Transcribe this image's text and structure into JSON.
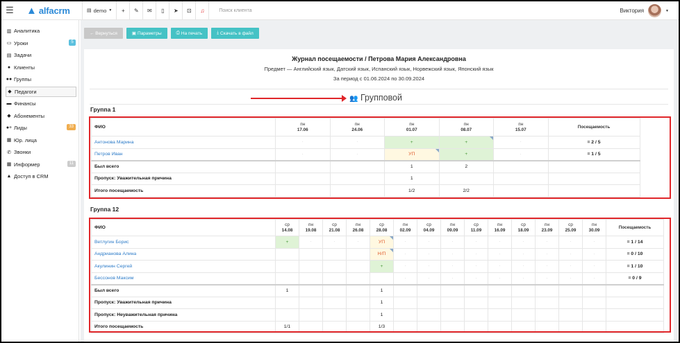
{
  "topbar": {
    "brand": "alfacrm",
    "account": "demo",
    "search_placeholder": "Поиск клиента",
    "user_name": "Виктория",
    "icons": [
      "menu-icon",
      "plus-icon",
      "wrench-icon",
      "mail-icon",
      "phone-icon",
      "telegram-icon",
      "cart-icon",
      "bell-icon"
    ]
  },
  "sidebar": {
    "items": [
      {
        "label": "Аналитика",
        "icon": "chart-icon"
      },
      {
        "label": "Уроки",
        "icon": "calendar-icon",
        "badge": "5",
        "badge_color": "#5bc0de"
      },
      {
        "label": "Задачи",
        "icon": "tasks-icon"
      },
      {
        "label": "Клиенты",
        "icon": "user-icon"
      },
      {
        "label": "Группы",
        "icon": "group-icon"
      },
      {
        "label": "Педагоги",
        "icon": "graduation-cap-icon",
        "active": true
      },
      {
        "label": "Финансы",
        "icon": "money-icon"
      },
      {
        "label": "Абонементы",
        "icon": "tag-icon"
      },
      {
        "label": "Лиды",
        "icon": "user-plus-icon",
        "badge": "33",
        "badge_color": "#f0ad4e"
      },
      {
        "label": "Юр. лица",
        "icon": "building-icon"
      },
      {
        "label": "Звонки",
        "icon": "phone-icon"
      },
      {
        "label": "Информер",
        "icon": "informer-icon",
        "badge": "11",
        "badge_color": "#cccccc"
      },
      {
        "label": "Доступ в CRM",
        "icon": "lock-icon"
      }
    ]
  },
  "toolbar": {
    "back_label": "← Вернуться",
    "params_label": "Параметры",
    "print_label": "На печать",
    "download_label": "Скачать в файл"
  },
  "journal": {
    "title": "Журнал посещаемости / Петрова Мария Александровна",
    "subject": "Предмет — Английский язык, Датский язык, Испанский язык, Норвежский язык, Японский язык",
    "period": "За период с 01.06.2024 по 30.09.2024",
    "group_type": "Групповой"
  },
  "colors": {
    "accent": "#45c2c5",
    "brand": "#2c8ad8",
    "highlight": "#e0262a",
    "present": "#dff3d6",
    "excused": "#fff8e1"
  },
  "groups": [
    {
      "name": "Группа 1",
      "fio_header": "ФИО",
      "attendance_header": "Посещаемость",
      "dates": [
        {
          "day": "пн",
          "date": "17.06"
        },
        {
          "day": "пн",
          "date": "24.06"
        },
        {
          "day": "пн",
          "date": "01.07"
        },
        {
          "day": "пн",
          "date": "08.07"
        },
        {
          "day": "пн",
          "date": "15.07"
        }
      ],
      "students": [
        {
          "name": "Антонова Марина",
          "marks": [
            "·",
            "·",
            "+",
            "+",
            "·"
          ],
          "attendance": "= 2 / 5"
        },
        {
          "name": "Петров Иван",
          "marks": [
            "·",
            "·",
            "УП",
            "+",
            "·"
          ],
          "attendance": "= 1 / 5"
        }
      ],
      "summary": [
        {
          "label": "Был всего",
          "values": [
            "",
            "",
            "1",
            "2",
            ""
          ]
        },
        {
          "label": "Пропуск: Уважительная причина",
          "values": [
            "",
            "",
            "1",
            "",
            ""
          ]
        },
        {
          "label": "Итого посещаемость",
          "values": [
            "",
            "",
            "1/2",
            "2/2",
            ""
          ]
        }
      ]
    },
    {
      "name": "Группа 12",
      "fio_header": "ФИО",
      "attendance_header": "Посещаемость",
      "dates": [
        {
          "day": "ср",
          "date": "14.08"
        },
        {
          "day": "пн",
          "date": "19.08"
        },
        {
          "day": "ср",
          "date": "21.08"
        },
        {
          "day": "пн",
          "date": "26.08"
        },
        {
          "day": "ср",
          "date": "28.08"
        },
        {
          "day": "пн",
          "date": "02.09"
        },
        {
          "day": "ср",
          "date": "04.09"
        },
        {
          "day": "пн",
          "date": "09.09"
        },
        {
          "day": "ср",
          "date": "11.09"
        },
        {
          "day": "пн",
          "date": "16.09"
        },
        {
          "day": "ср",
          "date": "18.09"
        },
        {
          "day": "пн",
          "date": "23.09"
        },
        {
          "day": "ср",
          "date": "25.09"
        },
        {
          "day": "пн",
          "date": "30.09"
        }
      ],
      "students": [
        {
          "name": "Ветлугин Борис",
          "marks": [
            "+",
            "·",
            "·",
            "·",
            "УП",
            "·",
            "·",
            "·",
            "·",
            "·",
            "·",
            "·",
            "·",
            "·"
          ],
          "attendance": "= 1 / 14"
        },
        {
          "name": "Андрианова Алина",
          "marks": [
            "",
            "",
            "",
            "",
            "Н/П",
            "·",
            "·",
            "·",
            "·",
            "·",
            "·",
            "·",
            "·",
            "·"
          ],
          "attendance": "= 0 / 10"
        },
        {
          "name": "Акулинин Сергей",
          "marks": [
            "",
            "",
            "",
            "",
            "+",
            "·",
            "·",
            "·",
            "·",
            "·",
            "·",
            "·",
            "·",
            "·"
          ],
          "attendance": "= 1 / 10"
        },
        {
          "name": "Бессонов Максим",
          "marks": [
            "",
            "",
            "",
            "",
            "",
            "·",
            "·",
            "·",
            "·",
            "·",
            "·",
            "·",
            "·",
            "·"
          ],
          "attendance": "= 0 / 9"
        }
      ],
      "summary": [
        {
          "label": "Был всего",
          "values": [
            "1",
            "",
            "",
            "",
            "1",
            "",
            "",
            "",
            "",
            "",
            "",
            "",
            "",
            ""
          ]
        },
        {
          "label": "Пропуск: Уважительная причина",
          "values": [
            "",
            "",
            "",
            "",
            "1",
            "",
            "",
            "",
            "",
            "",
            "",
            "",
            "",
            ""
          ]
        },
        {
          "label": "Пропуск: Неуважительная причина",
          "values": [
            "",
            "",
            "",
            "",
            "1",
            "",
            "",
            "",
            "",
            "",
            "",
            "",
            "",
            ""
          ]
        },
        {
          "label": "Итого посещаемость",
          "values": [
            "1/1",
            "",
            "",
            "",
            "1/3",
            "",
            "",
            "",
            "",
            "",
            "",
            "",
            "",
            ""
          ]
        }
      ]
    }
  ]
}
